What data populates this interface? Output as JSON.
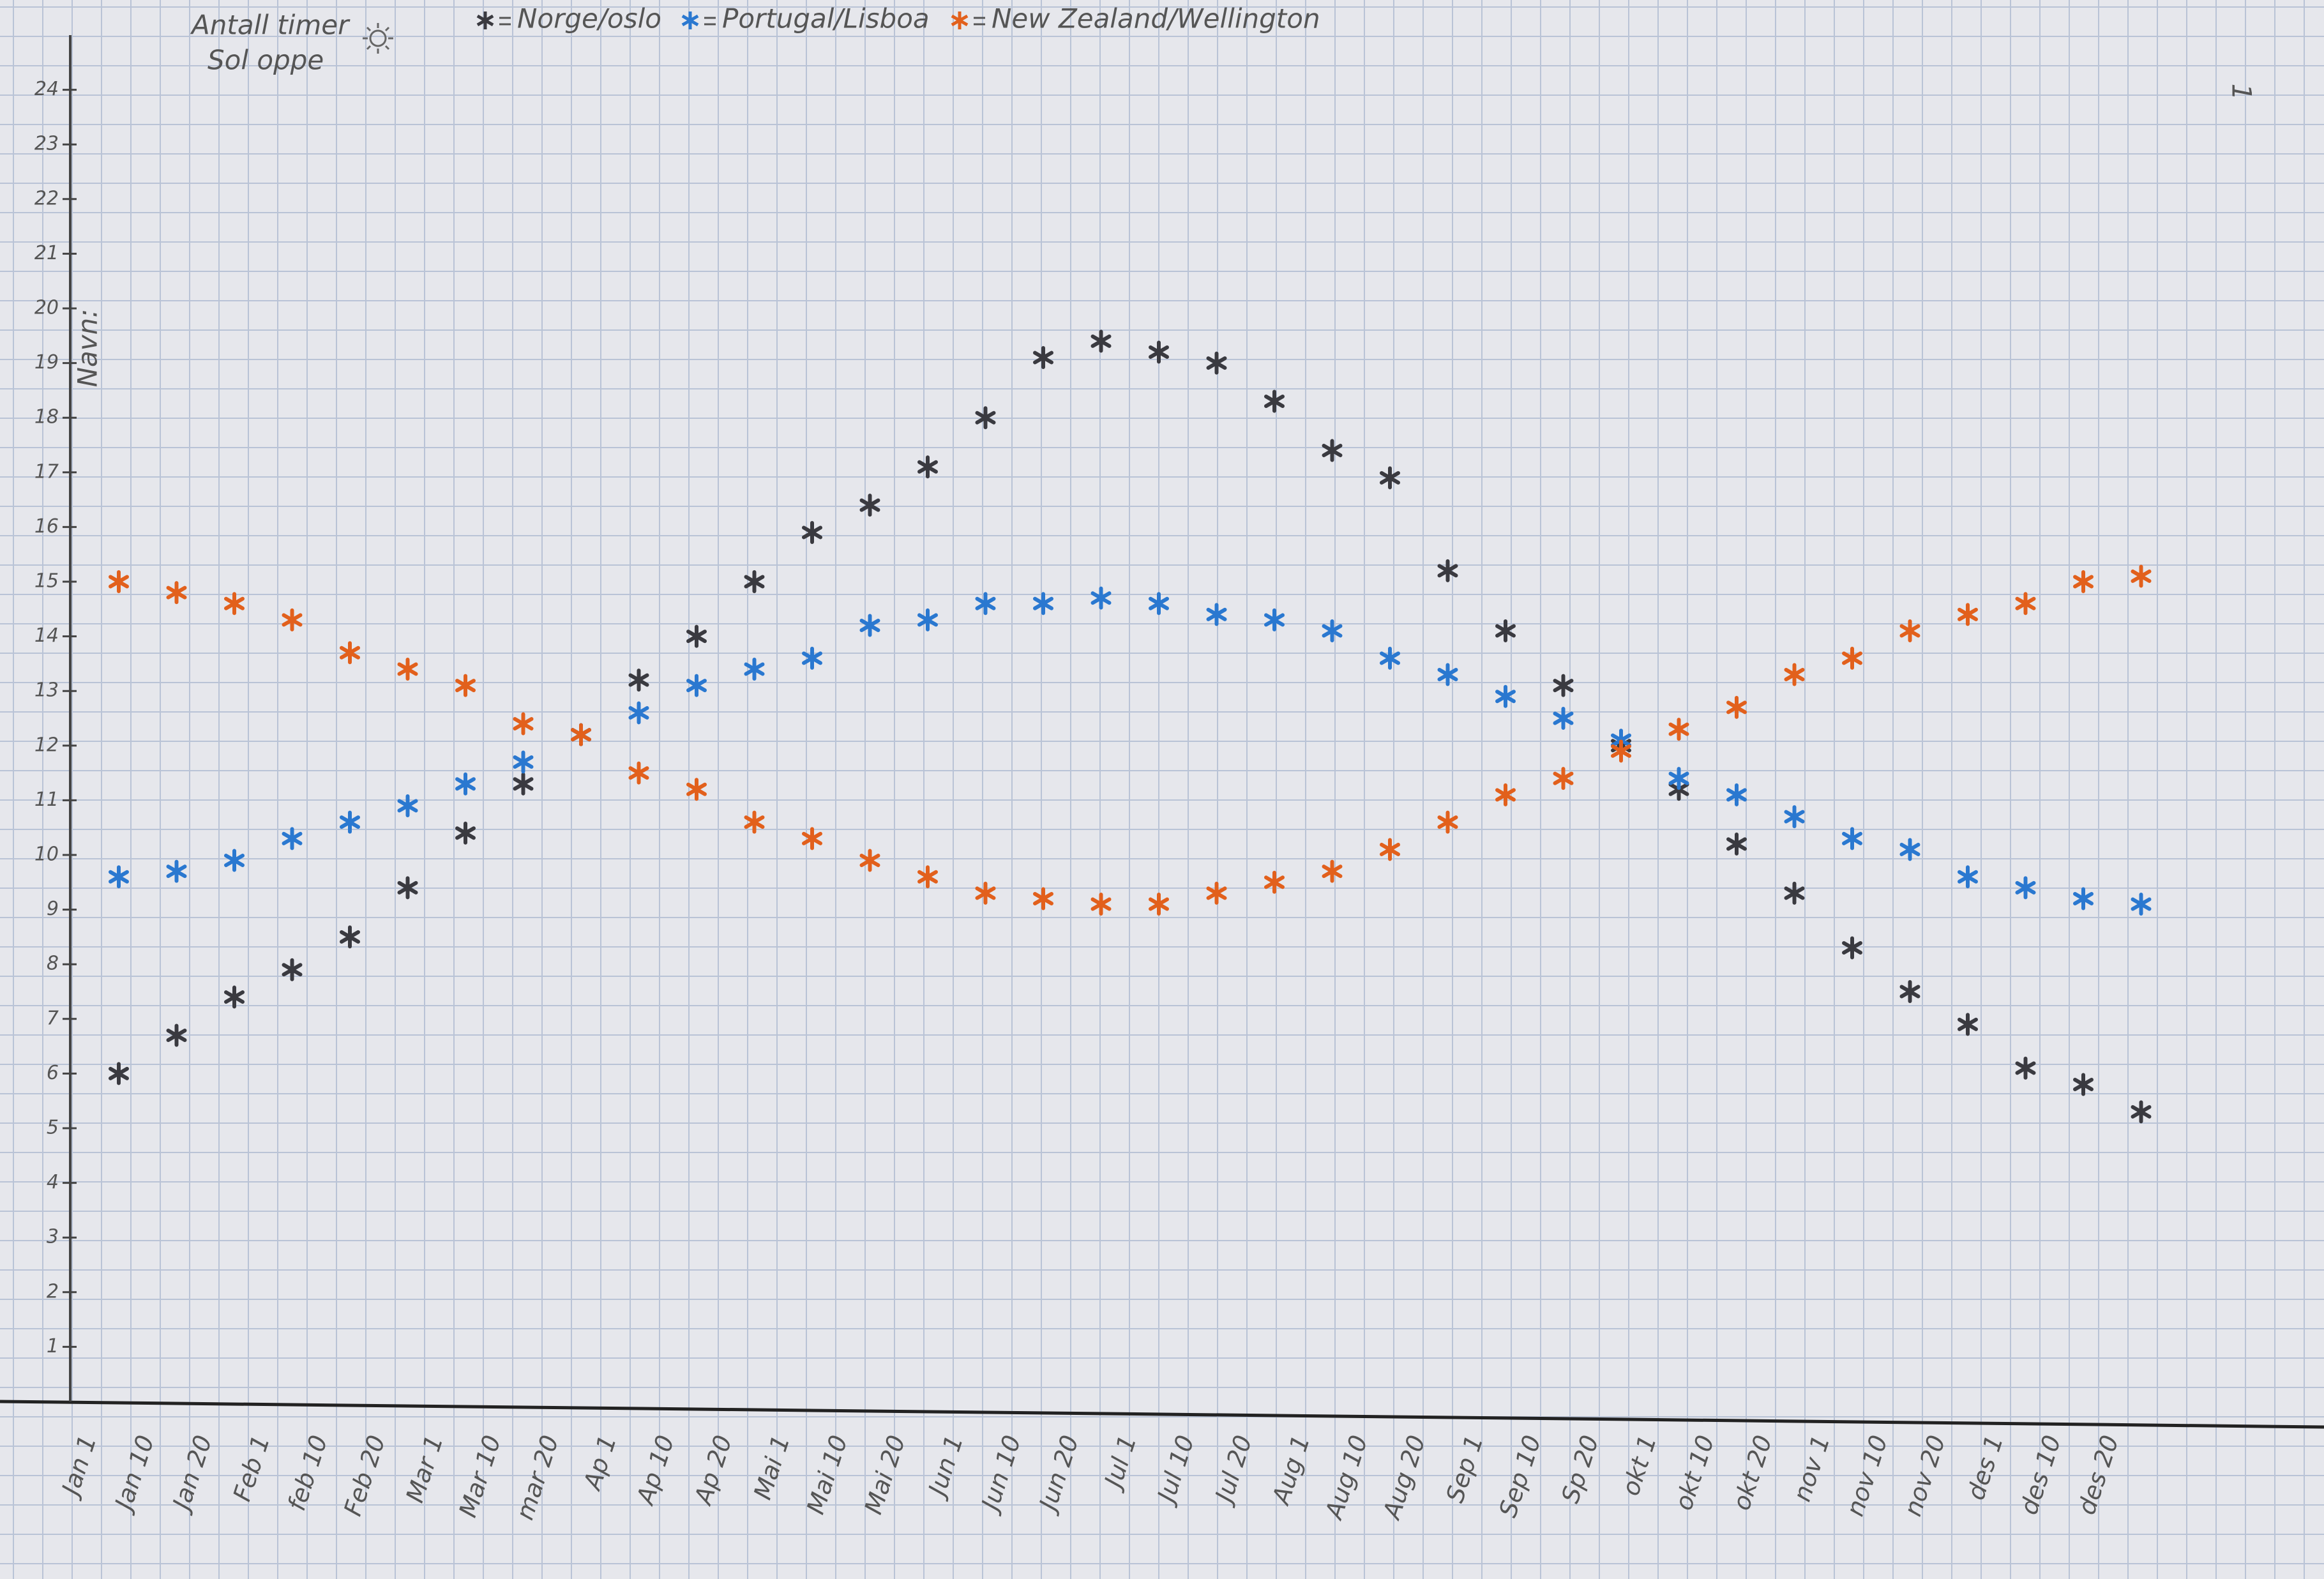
{
  "chart_data": {
    "type": "scatter",
    "ylabel": [
      "Antall timer",
      "Sol oppe"
    ],
    "annotations": [
      "Navn:",
      "1"
    ],
    "categories": [
      "Jan 1",
      "Jan 10",
      "Jan 20",
      "Feb 1",
      "feb 10",
      "Feb 20",
      "Mar 1",
      "Mar 10",
      "mar 20",
      "Ap 1",
      "Ap 10",
      "Ap 20",
      "Mai 1",
      "Mai 10",
      "Mai 20",
      "Jun 1",
      "Jun 10",
      "Jun 20",
      "Jul 1",
      "Jul 10",
      "Jul 20",
      "Aug 1",
      "Aug 10",
      "Aug 20",
      "Sep 1",
      "Sep 10",
      "Sp 20",
      "okt 1",
      "okt 10",
      "okt 20",
      "nov 1",
      "nov 10",
      "nov 20",
      "des 1",
      "des 10",
      "des 20"
    ],
    "series": [
      {
        "name": "Norge/oslo",
        "color": "#3a3a40",
        "values": [
          6.0,
          6.7,
          7.4,
          7.9,
          8.5,
          9.4,
          10.4,
          11.3,
          12.2,
          13.2,
          14.0,
          15.0,
          15.9,
          16.4,
          17.1,
          18.0,
          19.1,
          19.4,
          19.2,
          19.0,
          18.3,
          17.4,
          16.9,
          15.2,
          14.1,
          13.1,
          12.0,
          11.2,
          10.2,
          9.3,
          8.3,
          7.5,
          6.9,
          6.1,
          5.8,
          5.3
        ]
      },
      {
        "name": "Portugal/Lisboa",
        "color": "#2a78d0",
        "values": [
          9.6,
          9.7,
          9.9,
          10.3,
          10.6,
          10.9,
          11.3,
          11.7,
          12.2,
          12.6,
          13.1,
          13.4,
          13.6,
          14.2,
          14.3,
          14.6,
          14.6,
          14.7,
          14.6,
          14.4,
          14.3,
          14.1,
          13.6,
          13.3,
          12.9,
          12.5,
          12.1,
          11.4,
          11.1,
          10.7,
          10.3,
          10.1,
          9.6,
          9.4,
          9.2,
          9.1
        ]
      },
      {
        "name": "New Zealand/Wellington",
        "color": "#e2601c",
        "values": [
          15.0,
          14.8,
          14.6,
          14.3,
          13.7,
          13.4,
          13.1,
          12.4,
          12.2,
          11.5,
          11.2,
          10.6,
          10.3,
          9.9,
          9.6,
          9.3,
          9.2,
          9.1,
          9.1,
          9.3,
          9.5,
          9.7,
          10.1,
          10.6,
          11.1,
          11.4,
          11.9,
          12.3,
          12.7,
          13.3,
          13.6,
          14.1,
          14.4,
          14.6,
          15.0,
          15.1
        ]
      }
    ],
    "ylim": [
      0,
      25
    ],
    "yticks": [
      1,
      2,
      3,
      4,
      5,
      6,
      7,
      8,
      9,
      10,
      11,
      12,
      13,
      14,
      15,
      16,
      17,
      18,
      19,
      20,
      21,
      22,
      23,
      24
    ]
  }
}
